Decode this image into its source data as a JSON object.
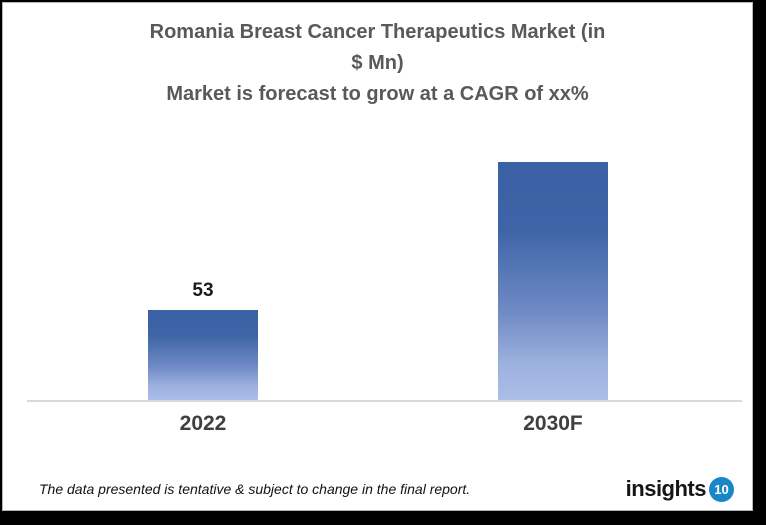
{
  "frame": {
    "background": "#000000",
    "card_background": "#ffffff",
    "card_border": "#b5b5b5"
  },
  "chart_data": {
    "type": "bar",
    "title": "Romania Breast Cancer Therapeutics Market (in $ Mn)",
    "subtitle": "Market is forecast to grow at a CAGR of xx%",
    "title_lines": [
      "Romania Breast Cancer Therapeutics Market (in",
      "$ Mn)",
      "Market is forecast to grow at a CAGR of xx%"
    ],
    "categories": [
      "2022",
      "2030F"
    ],
    "values": [
      53,
      140
    ],
    "data_labels": [
      "53",
      ""
    ],
    "value_labels_visible": [
      true,
      false
    ],
    "note_2030F": "no data label shown; value estimated from bar height ratio",
    "xlabel": "",
    "ylabel": "",
    "ylim": [
      0,
      150
    ],
    "grid": false,
    "legend": false,
    "axis_line_color": "#d9d9d9",
    "bar_gradient_top": "#3a61a3",
    "bar_gradient_bottom": "#abbee9",
    "title_color": "#595959",
    "category_label_color": "#3f3f3f",
    "data_label_color": "#1a1a1a"
  },
  "footer": {
    "note": "The data presented is tentative & subject to change in the final report.",
    "logo_text": "insights",
    "logo_badge": "10",
    "logo_badge_color": "#1a86c8"
  }
}
